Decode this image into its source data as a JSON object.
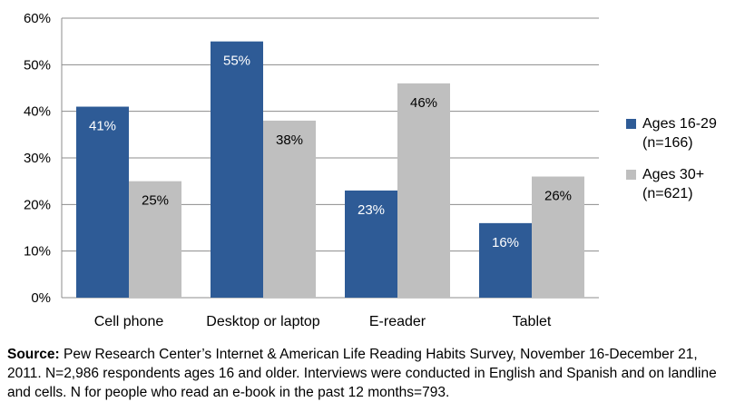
{
  "chart_data": {
    "type": "bar",
    "categories": [
      "Cell phone",
      "Desktop or laptop",
      "E-reader",
      "Tablet"
    ],
    "series": [
      {
        "name": "Ages 16-29 (n=166)",
        "values": [
          41,
          55,
          23,
          16
        ],
        "color": "#2e5b96"
      },
      {
        "name": "Ages 30+ (n=621)",
        "values": [
          25,
          38,
          46,
          26
        ],
        "color": "#bfbfbf"
      }
    ],
    "data_labels": [
      [
        "41%",
        "55%",
        "23%",
        "16%"
      ],
      [
        "25%",
        "38%",
        "46%",
        "26%"
      ]
    ],
    "ylim": [
      0,
      60
    ],
    "yticks": [
      "0%",
      "10%",
      "20%",
      "30%",
      "40%",
      "50%",
      "60%"
    ],
    "grid": true,
    "legend_position": "right"
  },
  "legend": {
    "items": [
      {
        "line1": "Ages 16-29",
        "line2": "(n=166)",
        "color": "#2e5b96"
      },
      {
        "line1": "Ages 30+",
        "line2": "(n=621)",
        "color": "#bfbfbf"
      }
    ]
  },
  "source": {
    "label": "Source:",
    "text": " Pew Research Center’s Internet & American Life Reading Habits Survey, November 16-December 21, 2011. N=2,986 respondents ages 16 and older. Interviews were conducted in English and Spanish and on landline and cells. N for people who read an e-book in the past 12 months=793."
  }
}
